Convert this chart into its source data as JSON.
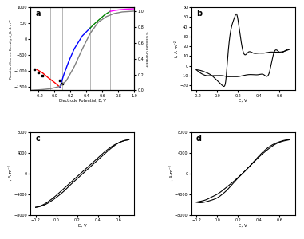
{
  "fig_bg": "#ffffff",
  "panel_bg": "#ffffff",
  "panel_a": {
    "label": "a",
    "xlabel": "Electrode Potential, E, V",
    "ylabel_left": "Reaction Current Density, i_R, A·m⁻²",
    "ylabel_right": "% Oxidised Character",
    "xlim": [
      -0.3,
      1.0
    ],
    "ylim_left": [
      -1600,
      1000
    ],
    "ylim_right": [
      0.0,
      1.05
    ],
    "vlines": [
      -0.05,
      0.1,
      0.45,
      0.7
    ],
    "scatter_x": [
      -0.25,
      -0.2,
      -0.15,
      0.07,
      0.1
    ],
    "scatter_y": [
      -950,
      -1050,
      -1150,
      -1300,
      -1380
    ],
    "red_x": [
      -0.22,
      -0.15,
      -0.08,
      0.0,
      0.07
    ],
    "red_y": [
      -950,
      -1050,
      -1200,
      -1350,
      -1500
    ],
    "blue_x": [
      0.07,
      0.12,
      0.18,
      0.25,
      0.35,
      0.45
    ],
    "blue_y": [
      -1500,
      -1100,
      -700,
      -300,
      100,
      350
    ],
    "green_x": [
      0.45,
      0.52,
      0.58,
      0.63,
      0.68,
      0.7
    ],
    "green_y": [
      350,
      520,
      650,
      760,
      840,
      870
    ],
    "magenta_x": [
      0.7,
      0.76,
      0.82,
      0.88,
      0.93,
      0.97,
      1.0
    ],
    "magenta_y": [
      870,
      900,
      920,
      935,
      942,
      947,
      950
    ],
    "sigmoid_x": [
      -0.3,
      -0.15,
      -0.05,
      0.07,
      0.15,
      0.25,
      0.35,
      0.45,
      0.55,
      0.65,
      0.75,
      0.85,
      1.0
    ],
    "sigmoid_y": [
      0.0,
      0.01,
      0.02,
      0.05,
      0.12,
      0.3,
      0.52,
      0.72,
      0.86,
      0.93,
      0.97,
      0.99,
      1.0
    ]
  },
  "panel_b": {
    "label": "b",
    "xlabel": "E, V",
    "ylabel": "i, A·m⁻²",
    "xlim": [
      -0.25,
      0.75
    ],
    "ylim": [
      -25,
      60
    ],
    "forward_x": [
      -0.2,
      -0.15,
      -0.1,
      -0.05,
      0.0,
      0.05,
      0.08,
      0.1,
      0.13,
      0.17,
      0.2,
      0.25,
      0.3,
      0.35,
      0.4,
      0.45,
      0.5,
      0.55,
      0.6,
      0.65,
      0.7
    ],
    "forward_y": [
      -4,
      -5,
      -7,
      -10,
      -15,
      -20,
      -18,
      5,
      35,
      50,
      48,
      15,
      14,
      13,
      13,
      13,
      14,
      14,
      14,
      15,
      17
    ],
    "backward_x": [
      0.7,
      0.65,
      0.6,
      0.55,
      0.5,
      0.45,
      0.4,
      0.35,
      0.3,
      0.25,
      0.2,
      0.15,
      0.1,
      0.05,
      0.0,
      -0.05,
      -0.1,
      -0.15,
      -0.2
    ],
    "backward_y": [
      17,
      15,
      14,
      14,
      -8,
      -9,
      -9,
      -9,
      -9,
      -10,
      -11,
      -11,
      -11,
      -10,
      -10,
      -10,
      -10,
      -8,
      -4
    ]
  },
  "panel_c": {
    "label": "c",
    "xlabel": "E, V",
    "ylabel": "i, A·m⁻²",
    "xlim": [
      -0.25,
      0.75
    ],
    "ylim": [
      -8000,
      8000
    ],
    "yticks": [
      -8000,
      -4000,
      0,
      4000,
      8000
    ],
    "forward_x": [
      -0.2,
      -0.15,
      -0.1,
      -0.05,
      0.0,
      0.05,
      0.1,
      0.15,
      0.2,
      0.25,
      0.3,
      0.35,
      0.4,
      0.45,
      0.5,
      0.55,
      0.6,
      0.65,
      0.7
    ],
    "forward_y": [
      -6500,
      -6200,
      -5700,
      -5000,
      -4200,
      -3300,
      -2400,
      -1500,
      -600,
      300,
      1200,
      2100,
      3000,
      3900,
      4700,
      5400,
      5900,
      6300,
      6500
    ],
    "backward_x": [
      0.7,
      0.65,
      0.6,
      0.55,
      0.5,
      0.45,
      0.4,
      0.35,
      0.3,
      0.25,
      0.2,
      0.15,
      0.1,
      0.05,
      0.0,
      -0.05,
      -0.1,
      -0.15,
      -0.2
    ],
    "backward_y": [
      6500,
      6300,
      5900,
      5200,
      4400,
      3500,
      2600,
      1700,
      800,
      -100,
      -1000,
      -1900,
      -2900,
      -3800,
      -4600,
      -5300,
      -5900,
      -6300,
      -6500
    ]
  },
  "panel_d": {
    "label": "d",
    "xlabel": "E, V",
    "ylabel": "i, A·m⁻²",
    "xlim": [
      -0.25,
      0.75
    ],
    "ylim": [
      -8000,
      8000
    ],
    "yticks": [
      -8000,
      -4000,
      0,
      4000,
      8000
    ],
    "forward_x": [
      -0.2,
      -0.15,
      -0.1,
      -0.05,
      0.0,
      0.05,
      0.1,
      0.15,
      0.2,
      0.25,
      0.3,
      0.35,
      0.4,
      0.45,
      0.5,
      0.55,
      0.6,
      0.65,
      0.7
    ],
    "forward_y": [
      -5500,
      -5300,
      -5000,
      -4500,
      -4000,
      -3300,
      -2500,
      -1700,
      -800,
      100,
      1100,
      2200,
      3300,
      4300,
      5100,
      5700,
      6100,
      6400,
      6500
    ],
    "backward_x": [
      0.7,
      0.65,
      0.6,
      0.55,
      0.5,
      0.45,
      0.4,
      0.35,
      0.3,
      0.25,
      0.2,
      0.15,
      0.1,
      0.05,
      0.0,
      -0.05,
      -0.1,
      -0.15,
      -0.2
    ],
    "backward_y": [
      6500,
      6300,
      6000,
      5500,
      4800,
      4000,
      3100,
      2100,
      1100,
      100,
      -900,
      -2000,
      -3100,
      -4000,
      -4700,
      -5100,
      -5400,
      -5600,
      -5500
    ]
  }
}
